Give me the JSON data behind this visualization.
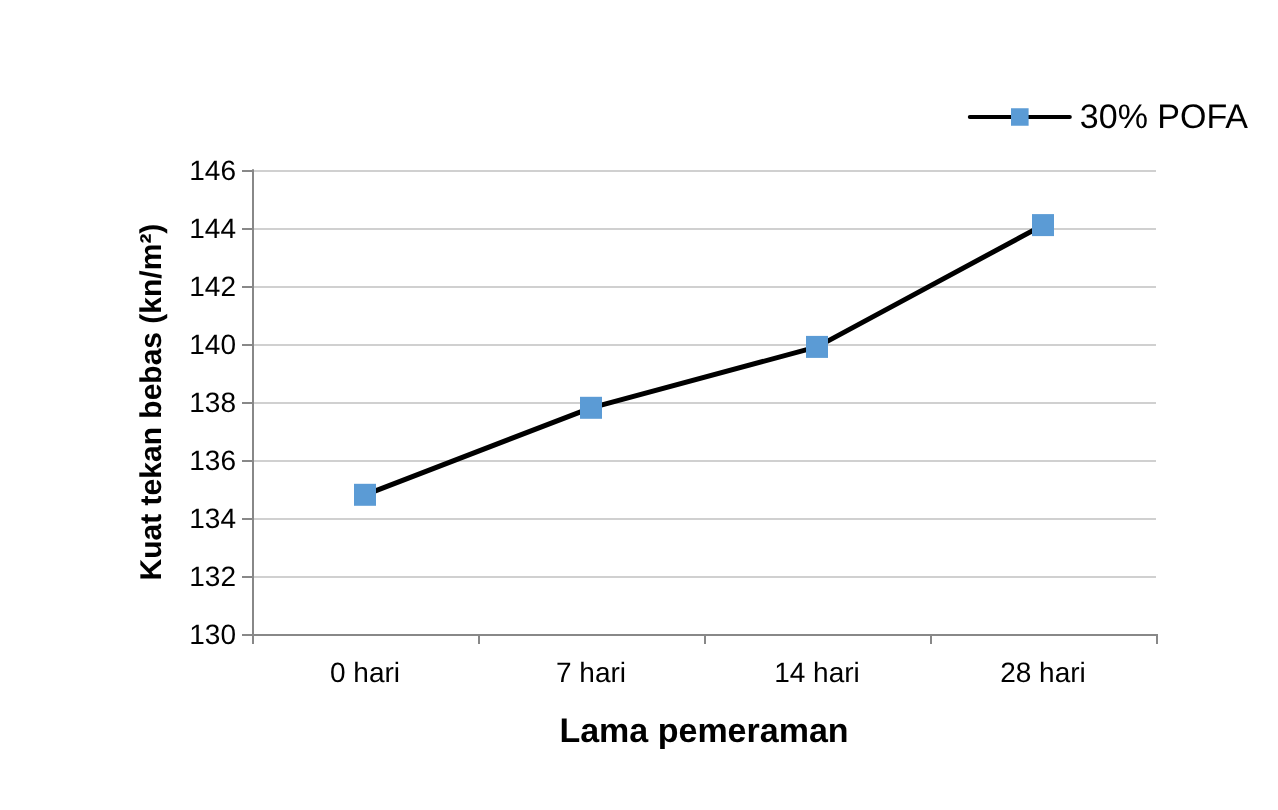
{
  "chart_data": {
    "type": "line",
    "xlabel": "Lama pemeraman",
    "ylabel": "Kuat tekan bebas (kn/m²)",
    "categories": [
      "0 hari",
      "7 hari",
      "14 hari",
      "28 hari"
    ],
    "series": [
      {
        "name": "30% POFA",
        "color": "#5b9bd5",
        "values": [
          134.8,
          137.8,
          139.9,
          144.1
        ]
      }
    ],
    "ylim": [
      130,
      146
    ],
    "yticks": [
      130,
      132,
      134,
      136,
      138,
      140,
      142,
      144,
      146
    ],
    "grid": "y",
    "legend": "top right",
    "marker": "square",
    "line_style": "solid"
  }
}
